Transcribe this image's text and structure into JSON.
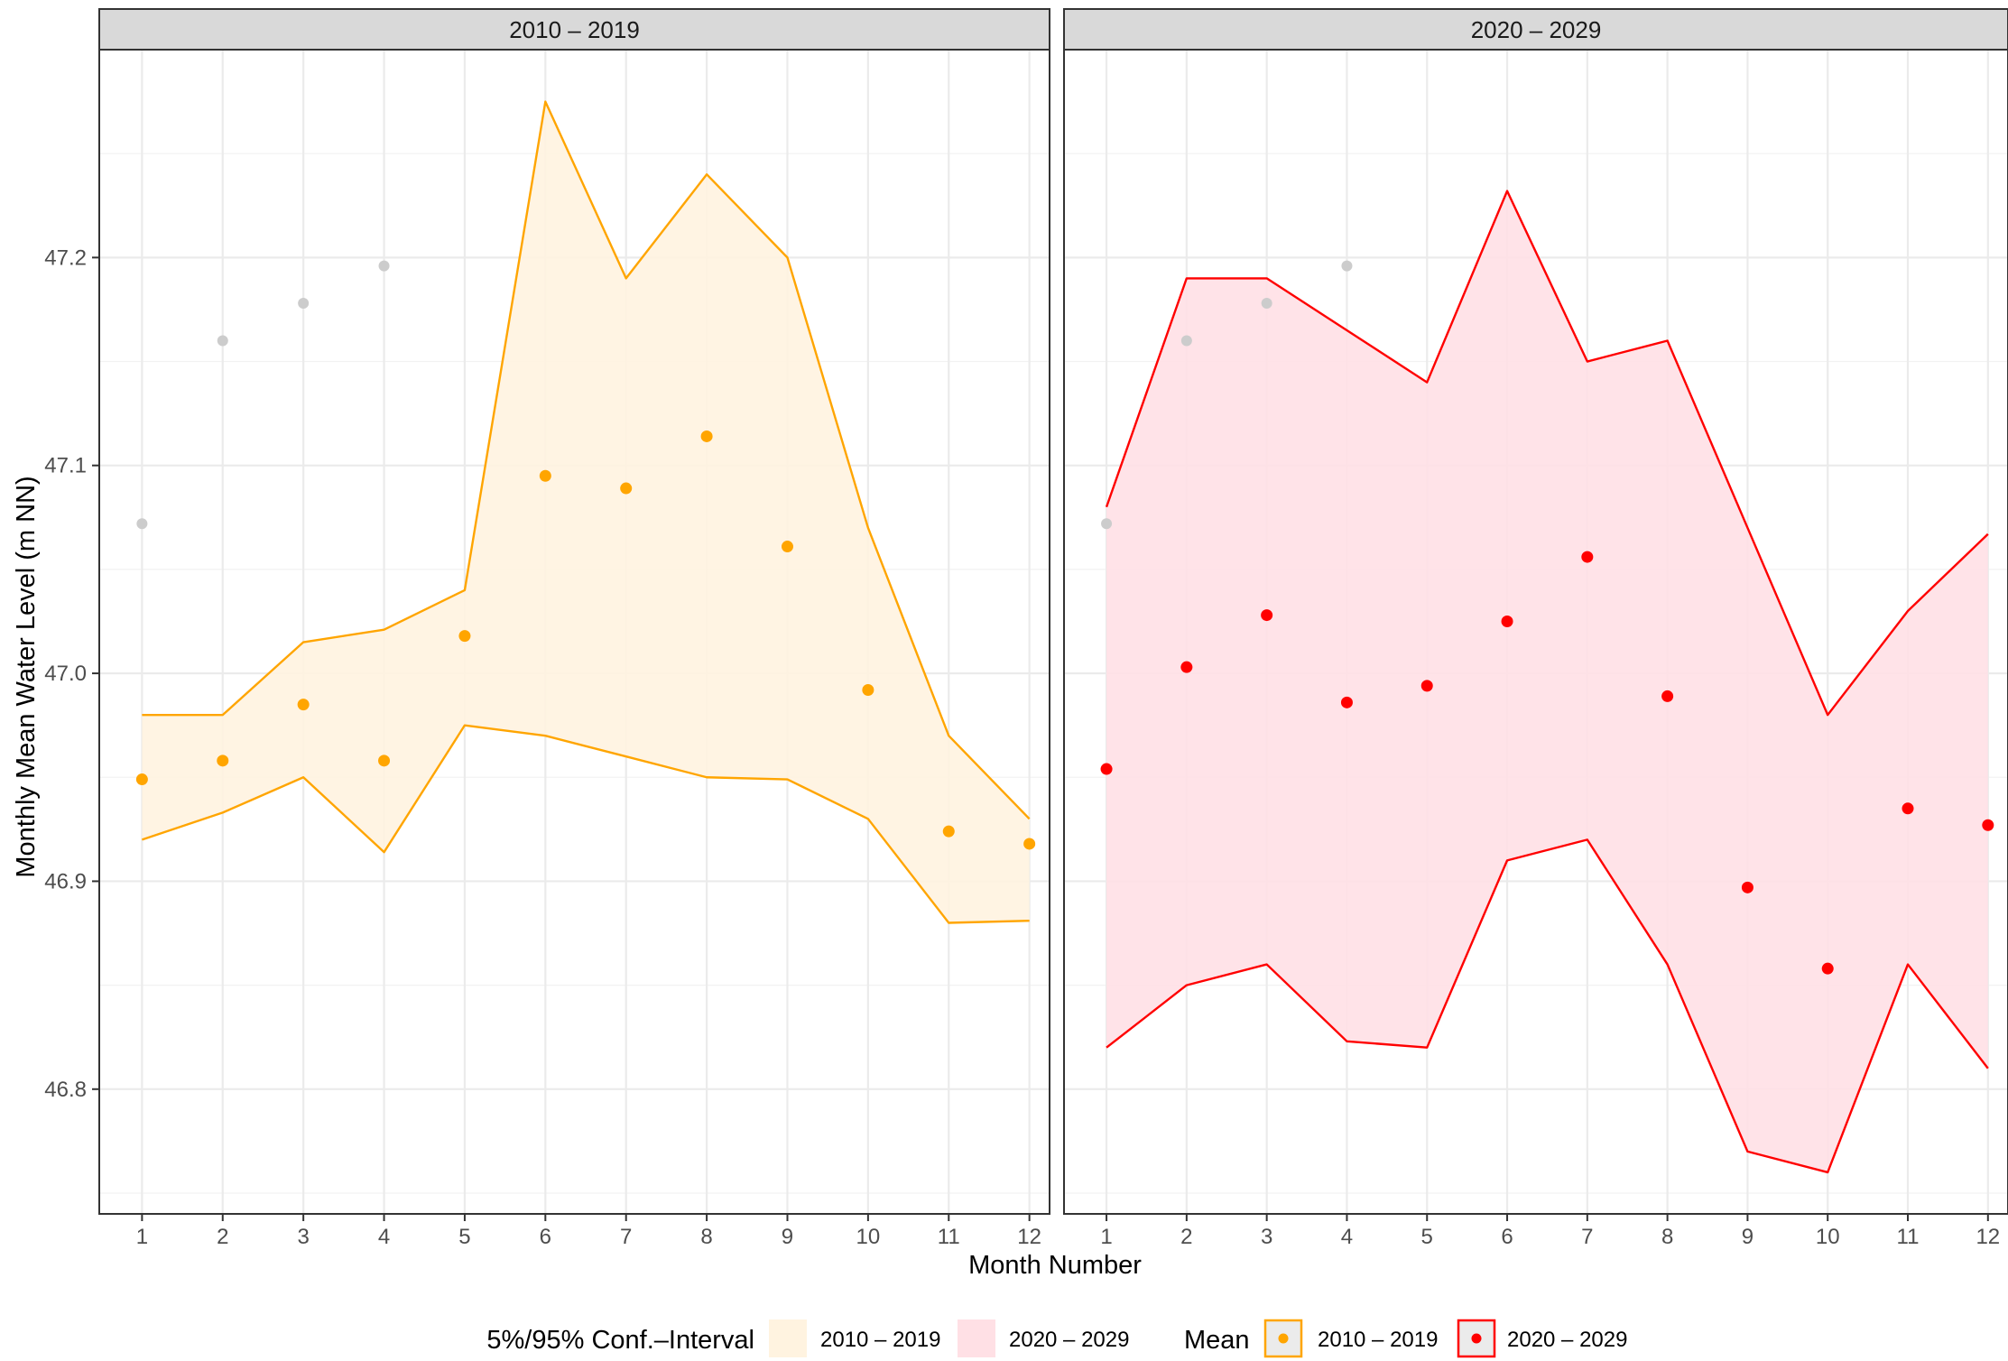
{
  "chart_data": {
    "type": "scatter",
    "ylabel": "Monthly Mean Water Level (m NN)",
    "xlabel": "Month Number",
    "x": [
      1,
      2,
      3,
      4,
      5,
      6,
      7,
      8,
      9,
      10,
      11,
      12
    ],
    "xlim": [
      0.47,
      12.25
    ],
    "ylim": [
      46.74,
      47.3
    ],
    "y_ticks": [
      "46.8",
      "46.9",
      "47.0",
      "47.1",
      "47.2"
    ],
    "y_tick_values": [
      46.8,
      46.9,
      47.0,
      47.1,
      47.2
    ],
    "x_ticks": [
      "1",
      "2",
      "3",
      "4",
      "5",
      "6",
      "7",
      "8",
      "9",
      "10",
      "11",
      "12"
    ],
    "grid": true,
    "legend_position": "bottom",
    "panels": [
      {
        "strip": "2010 – 2019",
        "color": "#FFA500",
        "fill": "#FFF3E0",
        "mean": [
          46.949,
          46.958,
          46.985,
          46.958,
          47.018,
          47.095,
          47.089,
          47.114,
          47.061,
          46.992,
          46.924,
          46.918
        ],
        "upper": [
          46.98,
          46.98,
          47.015,
          47.021,
          47.04,
          47.275,
          47.19,
          47.24,
          47.2,
          47.07,
          46.97,
          46.93
        ],
        "lower": [
          46.92,
          46.933,
          46.95,
          46.914,
          46.975,
          46.97,
          46.96,
          46.95,
          46.949,
          46.93,
          46.88,
          46.881
        ]
      },
      {
        "strip": "2020 – 2029",
        "color": "#FF0000",
        "fill": "#FFE0E5",
        "mean": [
          46.954,
          47.003,
          47.028,
          46.986,
          46.994,
          47.025,
          47.056,
          46.989,
          46.897,
          46.858,
          46.935,
          46.927
        ],
        "upper": [
          47.08,
          47.19,
          47.19,
          47.165,
          47.14,
          47.232,
          47.15,
          47.16,
          47.07,
          46.98,
          47.03,
          47.067
        ],
        "lower": [
          46.82,
          46.85,
          46.86,
          46.823,
          46.82,
          46.91,
          46.92,
          46.86,
          46.77,
          46.76,
          46.86,
          46.81
        ]
      }
    ],
    "grey_points": {
      "color": "#CCCCCC",
      "x": [
        1,
        2,
        3,
        4
      ],
      "y": [
        47.072,
        47.16,
        47.178,
        47.196
      ]
    },
    "legend": {
      "ci_title": "5%/95% Conf.–Interval",
      "mean_title": "Mean",
      "items": [
        "2010 – 2019",
        "2020 – 2029"
      ]
    }
  }
}
